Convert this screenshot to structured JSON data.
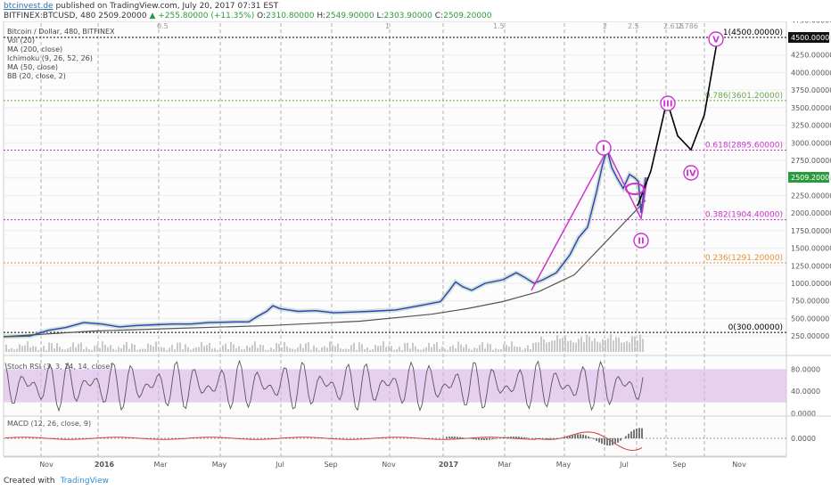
{
  "header": {
    "site": "btcinvest.de",
    "published": "published on TradingView.com, July 20, 2017 07:31 EST",
    "symbol": "BITFINEX:BTCUSD, 480",
    "last": "2509.20000",
    "change": "▲ +255.80000 (+11.35%)",
    "o_label": "O:",
    "o": "2310.80000",
    "h_label": "H:",
    "h": "2549.90000",
    "l_label": "L:",
    "l": "2303.90000",
    "c_label": "C:",
    "c": "2509.20000"
  },
  "indicators": [
    "Bitcoin / Dollar, 480, BITFINEX",
    "Vol (20)",
    "MA (200, close)",
    "Ichimoku (9, 26, 52, 26)",
    "MA (50, close)",
    "BB (20, close, 2)"
  ],
  "footer": {
    "created": "Created with",
    "brand": "TradingView"
  },
  "colors": {
    "price": "#3a3ab8",
    "ma200": "#555555",
    "ichimoku": "#8fc7a8",
    "fib_magenta": "#cc33cc",
    "fib_green": "#6aa84f",
    "fib_orange": "#e69138",
    "wave": "#cc33cc",
    "projection": "#000000",
    "stoch_band": "#d9b3e6",
    "macd": "#d63c3c"
  },
  "chart_data": {
    "type": "line",
    "title": "Bitcoin / Dollar, 480, BITFINEX",
    "x_ticks": [
      "Nov",
      "2016",
      "Mar",
      "May",
      "Jul",
      "Sep",
      "Nov",
      "2017",
      "Mar",
      "May",
      "Jul",
      "Sep",
      "Nov"
    ],
    "y_ticks": [
      "4750.00000",
      "4500.00000",
      "4250.00000",
      "4000.00000",
      "3750.00000",
      "3500.00000",
      "3250.00000",
      "3000.00000",
      "2750.00000",
      "2500.00000",
      "2250.00000",
      "2000.00000",
      "1750.00000",
      "1500.00000",
      "1250.00000",
      "1000.00000",
      "750.00000",
      "500.00000",
      "250.00000"
    ],
    "ylim": [
      150,
      4900
    ],
    "current_price_label": "2509.20000",
    "series": [
      {
        "name": "",
        "points": [
          [
            0,
            240
          ],
          [
            30,
            250
          ],
          [
            50,
            330
          ],
          [
            70,
            370
          ],
          [
            90,
            440
          ],
          [
            110,
            420
          ],
          [
            130,
            380
          ],
          [
            150,
            400
          ],
          [
            170,
            410
          ],
          [
            190,
            420
          ],
          [
            210,
            420
          ],
          [
            230,
            440
          ],
          [
            260,
            450
          ],
          [
            275,
            450
          ],
          [
            285,
            530
          ],
          [
            295,
            600
          ],
          [
            302,
            680
          ],
          [
            310,
            640
          ],
          [
            320,
            620
          ],
          [
            330,
            600
          ],
          [
            350,
            610
          ],
          [
            370,
            580
          ],
          [
            390,
            590
          ],
          [
            410,
            600
          ],
          [
            440,
            620
          ],
          [
            470,
            690
          ],
          [
            490,
            740
          ],
          [
            500,
            900
          ],
          [
            507,
            1020
          ],
          [
            515,
            950
          ],
          [
            525,
            900
          ],
          [
            540,
            1000
          ],
          [
            560,
            1050
          ],
          [
            575,
            1150
          ],
          [
            585,
            1080
          ],
          [
            595,
            1000
          ],
          [
            605,
            1050
          ],
          [
            620,
            1150
          ],
          [
            635,
            1400
          ],
          [
            645,
            1650
          ],
          [
            655,
            1800
          ],
          [
            665,
            2300
          ],
          [
            672,
            2700
          ],
          [
            677,
            2900
          ],
          [
            682,
            2650
          ],
          [
            688,
            2500
          ],
          [
            695,
            2350
          ],
          [
            702,
            2550
          ],
          [
            708,
            2500
          ],
          [
            712,
            2450
          ],
          [
            715,
            2000
          ],
          [
            718,
            2300
          ],
          [
            720,
            2509
          ]
        ]
      },
      {
        "name": "",
        "points": [
          [
            0,
            240
          ],
          [
            100,
            320
          ],
          [
            200,
            360
          ],
          [
            300,
            400
          ],
          [
            400,
            460
          ],
          [
            480,
            560
          ],
          [
            520,
            640
          ],
          [
            560,
            740
          ],
          [
            600,
            880
          ],
          [
            640,
            1120
          ],
          [
            680,
            1650
          ],
          [
            720,
            2180
          ]
        ]
      }
    ],
    "fib_levels": [
      {
        "label": "0(300.00000)",
        "value": 300
      },
      {
        "label": "0.236(1291.20000)",
        "value": 1291.2
      },
      {
        "label": "0.382(1904.40000)",
        "value": 1904.4
      },
      {
        "label": "0.618(2895.60000)",
        "value": 2895.6
      },
      {
        "label": "0.786(3601.20000)",
        "value": 3601.2
      },
      {
        "label": "1(4500.00000)",
        "value": 4500
      }
    ],
    "cycle_labels": [
      "0.5",
      "1",
      "1.5",
      "2",
      "2.5",
      "2.618",
      "2.786"
    ],
    "wave_labels": [
      {
        "label": "I",
        "value": 2900
      },
      {
        "label": "II",
        "value": 1920
      },
      {
        "label": "III",
        "value": 3600
      },
      {
        "label": "IV",
        "value": 2900
      },
      {
        "label": "V",
        "value": 4500
      }
    ],
    "projection": [
      [
        715,
        2100
      ],
      [
        730,
        2600
      ],
      [
        748,
        3600
      ],
      [
        760,
        3100
      ],
      [
        775,
        2900
      ],
      [
        790,
        3400
      ],
      [
        805,
        4500
      ]
    ],
    "stoch_rsi": {
      "title": "Stoch RSI (3, 3, 14, 14, close)",
      "y_ticks": [
        "80.0000",
        "40.0000",
        "0.0000"
      ],
      "band": [
        20,
        80
      ]
    },
    "macd": {
      "title": "MACD (12, 26, close, 9)",
      "y_ticks": [
        "0.0000"
      ]
    }
  }
}
